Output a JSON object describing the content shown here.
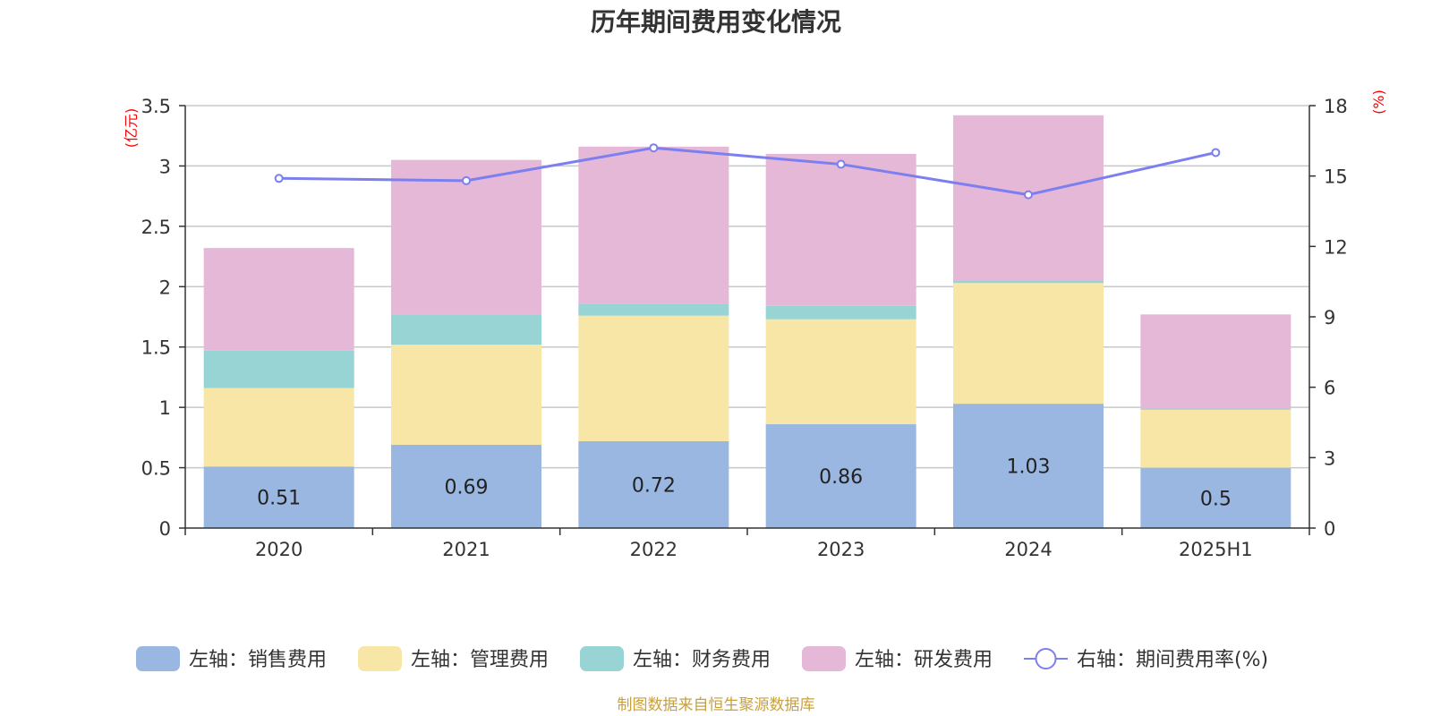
{
  "title": "历年期间费用变化情况",
  "source": "制图数据来自恒生聚源数据库",
  "colors": {
    "sales": "#9ab7e1",
    "admin": "#f7e6a6",
    "finance": "#98d4d4",
    "rd": "#e6b8d8",
    "rate": "#7b7ff0",
    "unit": "#ff0000",
    "source": "#c8a03c"
  },
  "chart_data": {
    "type": "bar",
    "stacked": true,
    "title": "历年期间费用变化情况",
    "categories": [
      "2020",
      "2021",
      "2022",
      "2023",
      "2024",
      "2025H1"
    ],
    "left_axis": {
      "unit_label": "(亿元)",
      "ylim": [
        0,
        3.5
      ],
      "ticks": [
        "0",
        "0.5",
        "1",
        "1.5",
        "2",
        "2.5",
        "3",
        "3.5"
      ]
    },
    "right_axis": {
      "unit_label": "(%)",
      "ylim": [
        0,
        18
      ],
      "ticks": [
        "0",
        "3",
        "6",
        "9",
        "12",
        "15",
        "18"
      ]
    },
    "series": [
      {
        "name": "左轴：销售费用",
        "axis": "left",
        "type": "bar",
        "color": "#9ab7e1",
        "values": [
          0.51,
          0.69,
          0.72,
          0.86,
          1.03,
          0.5
        ],
        "labels": [
          "0.51",
          "0.69",
          "0.72",
          "0.86",
          "1.03",
          "0.5"
        ]
      },
      {
        "name": "左轴：管理费用",
        "axis": "left",
        "type": "bar",
        "color": "#f7e6a6",
        "values": [
          0.65,
          0.83,
          1.04,
          0.87,
          1.0,
          0.48
        ]
      },
      {
        "name": "左轴：财务费用",
        "axis": "left",
        "type": "bar",
        "color": "#98d4d4",
        "values": [
          0.31,
          0.25,
          0.1,
          0.11,
          0.02,
          0.01
        ]
      },
      {
        "name": "左轴：研发费用",
        "axis": "left",
        "type": "bar",
        "color": "#e6b8d8",
        "values": [
          0.85,
          1.28,
          1.3,
          1.26,
          1.37,
          0.78
        ]
      },
      {
        "name": "右轴：期间费用率(%)",
        "axis": "right",
        "type": "line",
        "color": "#7b7ff0",
        "values": [
          14.9,
          14.8,
          16.2,
          15.5,
          14.2,
          16.0
        ]
      }
    ],
    "grid": true,
    "legend_position": "bottom"
  }
}
